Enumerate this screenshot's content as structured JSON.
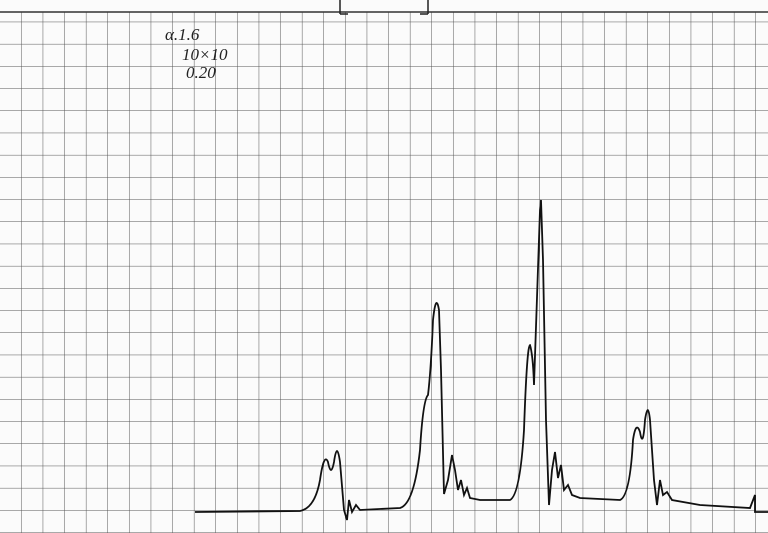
{
  "annotations": {
    "sample": "α.1.6",
    "cell": "10×10",
    "value": "0.20"
  }
}
